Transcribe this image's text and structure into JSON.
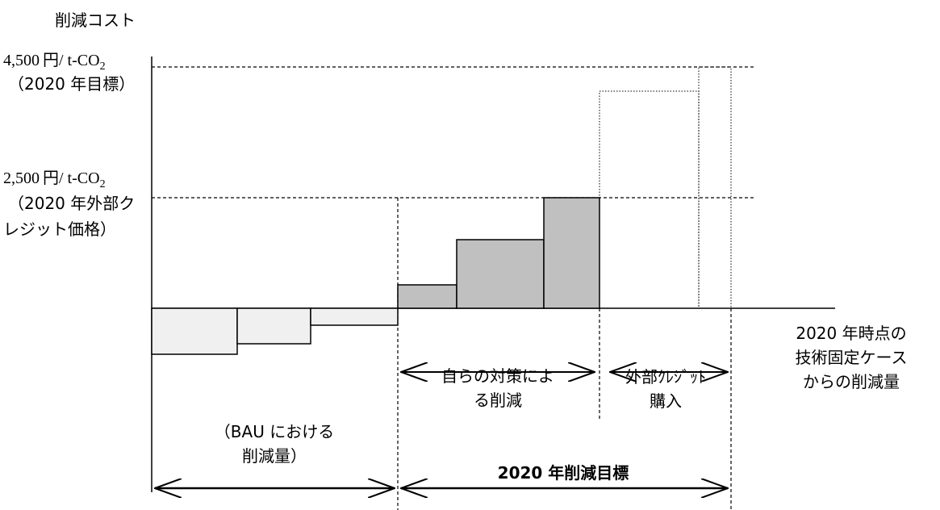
{
  "diagram": {
    "y_axis_title": "削減コスト",
    "levels": [
      {
        "price": "4,500",
        "unit": "円/ t-CO",
        "sub": "2",
        "note_lines": [
          "（2020 年目標）"
        ]
      },
      {
        "price": "2,500",
        "unit": "円/ t-CO",
        "sub": "2",
        "note_lines": [
          "（2020 年外部ク",
          "レジット価格）"
        ]
      }
    ],
    "x_axis_label_lines": [
      "2020 年時点の",
      "技術固定ケース",
      "からの削減量"
    ],
    "bau_label_lines": [
      "（BAU における",
      "削減量）"
    ],
    "own_measures_label_lines": [
      "自らの対策によ",
      "る削減"
    ],
    "external_credit_label_lines": [
      "外部ｸﾚｼﾞｯﾄ",
      "購入"
    ],
    "target_label": "2020 年削減目標",
    "colors": {
      "bau_fill": "#f0f0f0",
      "own_fill": "#c0c0c0",
      "line": "#000000"
    }
  }
}
